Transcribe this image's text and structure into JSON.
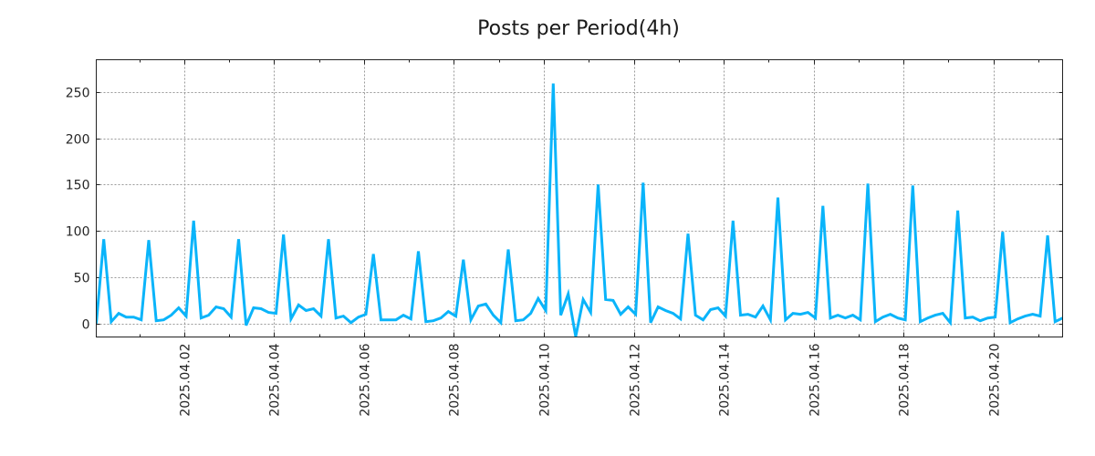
{
  "chart_data": {
    "type": "line",
    "title": "Posts per Period(4h)",
    "xlabel": "",
    "ylabel": "",
    "series": [
      {
        "name": "posts",
        "color": "#0ab4fa",
        "start": "2025-03-31 01:00",
        "interval_hours": 4,
        "values": [
          0,
          91,
          2,
          11,
          7,
          7,
          4,
          90,
          3,
          4,
          9,
          17,
          8,
          111,
          6,
          9,
          18,
          16,
          7,
          91,
          -2,
          17,
          16,
          12,
          11,
          96,
          5,
          20,
          14,
          16,
          8,
          91,
          6,
          8,
          1,
          7,
          10,
          75,
          4,
          4,
          4,
          9,
          5,
          78,
          2,
          3,
          6,
          13,
          8,
          69,
          4,
          19,
          21,
          9,
          1,
          80,
          3,
          4,
          11,
          27,
          14,
          259,
          9,
          32,
          -14,
          26,
          12,
          150,
          26,
          25,
          10,
          18,
          10,
          152,
          1,
          18,
          14,
          11,
          5,
          97,
          9,
          4,
          15,
          17,
          8,
          111,
          9,
          10,
          7,
          19,
          4,
          136,
          4,
          11,
          10,
          12,
          6,
          127,
          6,
          9,
          6,
          9,
          4,
          151,
          2,
          7,
          10,
          6,
          4,
          149,
          2,
          6,
          9,
          11,
          1,
          122,
          6,
          7,
          3,
          6,
          7,
          99,
          1,
          5,
          8,
          10,
          8,
          95,
          2,
          6
        ]
      }
    ],
    "xlim_hours": [
      0,
      516
    ],
    "ylim": [
      -14.5,
      284.7
    ],
    "yticks": [
      0,
      50,
      100,
      150,
      200,
      250
    ],
    "xticks": [
      {
        "label": "2025.04.02",
        "hours": 47
      },
      {
        "label": "2025.04.04",
        "hours": 95
      },
      {
        "label": "2025.04.06",
        "hours": 143
      },
      {
        "label": "2025.04.08",
        "hours": 191
      },
      {
        "label": "2025.04.10",
        "hours": 239
      },
      {
        "label": "2025.04.12",
        "hours": 287
      },
      {
        "label": "2025.04.14",
        "hours": 335
      },
      {
        "label": "2025.04.16",
        "hours": 383
      },
      {
        "label": "2025.04.18",
        "hours": 431
      },
      {
        "label": "2025.04.20",
        "hours": 479
      }
    ],
    "grid": true
  }
}
